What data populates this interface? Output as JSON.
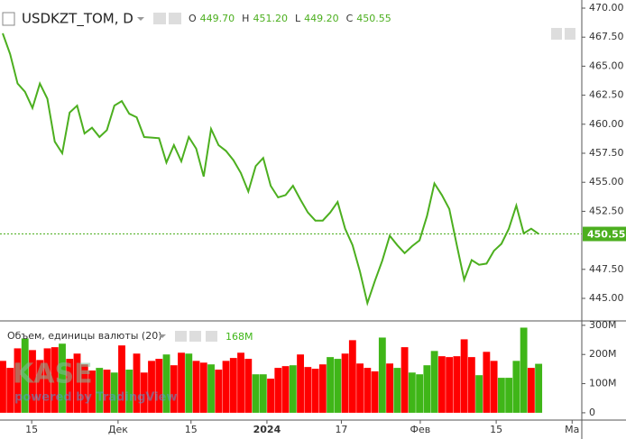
{
  "chart_data": [
    {
      "type": "line",
      "title": "USDKZT_TOM, D",
      "ohlc": [
        [
          "O",
          "449.70"
        ],
        [
          "H",
          "451.20"
        ],
        [
          "L",
          "449.20"
        ],
        [
          "C",
          "450.55"
        ]
      ],
      "color": "#4caf1f",
      "categories": [
        null,
        null,
        null,
        null,
        null,
        null,
        null,
        null,
        null,
        null,
        null,
        null,
        null,
        null,
        null,
        null,
        null,
        null,
        null,
        null,
        null,
        null,
        null,
        null,
        null,
        null,
        null,
        null,
        null,
        null,
        null,
        null,
        null,
        null,
        null,
        null,
        null,
        null,
        null,
        null,
        null,
        null,
        null,
        null,
        null,
        null,
        null,
        null,
        null,
        null,
        null,
        null,
        null,
        null,
        null,
        null,
        null,
        null,
        null,
        null,
        null,
        null,
        null,
        null,
        null,
        null,
        null,
        null,
        null,
        null,
        null,
        null,
        null
      ],
      "values": [
        467.83,
        466.05,
        463.5,
        462.8,
        461.4,
        463.5,
        462.2,
        458.5,
        457.5,
        461.0,
        461.6,
        459.2,
        459.7,
        458.9,
        459.5,
        461.6,
        462.0,
        460.9,
        460.6,
        458.9,
        458.85,
        458.8,
        456.7,
        458.2,
        456.8,
        458.9,
        457.9,
        455.5,
        459.6,
        458.2,
        457.7,
        456.9,
        455.8,
        454.2,
        456.4,
        457.1,
        454.7,
        453.7,
        453.9,
        454.7,
        453.5,
        452.4,
        451.7,
        451.7,
        452.4,
        453.3,
        451.0,
        449.6,
        447.3,
        444.6,
        446.5,
        448.25,
        450.4,
        449.6,
        448.9,
        449.5,
        450.0,
        452.1,
        454.9,
        453.9,
        452.7,
        449.6,
        446.6,
        448.3,
        447.9,
        448.0,
        449.1,
        449.7,
        451.0,
        453.0,
        450.6,
        451.0,
        450.55
      ],
      "last_value": 450.55,
      "last_label": "450.55",
      "xlim": [
        -0.36,
        77.8
      ],
      "ylim": [
        443.06,
        470.7
      ],
      "yticks": [
        {
          "value": 445,
          "label": "445.00"
        },
        {
          "value": 447.5,
          "label": "447.50"
        },
        {
          "value": 452.5,
          "label": "452.50"
        },
        {
          "value": 455,
          "label": "455.00"
        },
        {
          "value": 457.5,
          "label": "457.50"
        },
        {
          "value": 460,
          "label": "460.00"
        },
        {
          "value": 462.5,
          "label": "462.50"
        },
        {
          "value": 465,
          "label": "465.00"
        },
        {
          "value": 467.5,
          "label": "467.50"
        },
        {
          "value": 470,
          "label": "470.00"
        }
      ]
    },
    {
      "type": "bar",
      "title": "Объем, единицы валюты (20)",
      "last_label": "168M",
      "values": [
        178,
        154,
        221,
        255,
        215,
        181,
        221,
        225,
        237,
        185,
        203,
        166,
        145,
        154,
        148,
        138,
        231,
        148,
        203,
        138,
        178,
        185,
        200,
        163,
        206,
        203,
        178,
        172,
        166,
        148,
        178,
        188,
        206,
        185,
        132,
        132,
        117,
        154,
        160,
        163,
        200,
        157,
        151,
        166,
        191,
        185,
        203,
        249,
        169,
        154,
        142,
        258,
        169,
        154,
        225,
        138,
        132,
        163,
        212,
        194,
        191,
        194,
        252,
        191,
        129,
        209,
        178,
        120,
        120,
        178,
        292,
        154,
        168
      ],
      "colors": [
        "#ff0000",
        "#ff0000",
        "#ff0000",
        "#3fb618",
        "#ff0000",
        "#ff0000",
        "#ff0000",
        "#ff0000",
        "#3fb618",
        "#ff0000",
        "#ff0000",
        "#ff0000",
        "#ff0000",
        "#3fb618",
        "#ff0000",
        "#3fb618",
        "#ff0000",
        "#3fb618",
        "#ff0000",
        "#ff0000",
        "#ff0000",
        "#ff0000",
        "#3fb618",
        "#ff0000",
        "#ff0000",
        "#3fb618",
        "#ff0000",
        "#ff0000",
        "#3fb618",
        "#ff0000",
        "#ff0000",
        "#ff0000",
        "#ff0000",
        "#ff0000",
        "#3fb618",
        "#3fb618",
        "#ff0000",
        "#ff0000",
        "#ff0000",
        "#3fb618",
        "#ff0000",
        "#ff0000",
        "#ff0000",
        "#ff0000",
        "#3fb618",
        "#3fb618",
        "#ff0000",
        "#ff0000",
        "#ff0000",
        "#ff0000",
        "#ff0000",
        "#3fb618",
        "#ff0000",
        "#3fb618",
        "#ff0000",
        "#3fb618",
        "#3fb618",
        "#3fb618",
        "#3fb618",
        "#ff0000",
        "#ff0000",
        "#ff0000",
        "#ff0000",
        "#ff0000",
        "#3fb618",
        "#ff0000",
        "#ff0000",
        "#3fb618",
        "#3fb618",
        "#3fb618",
        "#3fb618",
        "#ff0000",
        "#3fb618"
      ],
      "ylim": [
        -25,
        312
      ],
      "yticks": [
        0,
        {
          "value": 100,
          "label": "100M"
        },
        {
          "value": 200,
          "label": "200M"
        },
        {
          "value": 300,
          "label": "300M"
        }
      ],
      "xlim": [
        -0.36,
        77.8
      ],
      "xticks": [
        {
          "value": 3.9,
          "label": "15"
        },
        {
          "value": 15.5,
          "label": "Дек"
        },
        {
          "value": 25.3,
          "label": "15"
        },
        {
          "value": 35.5,
          "label": "2024"
        },
        {
          "value": 45.5,
          "label": "17"
        },
        {
          "value": 56.1,
          "label": "Фев"
        },
        {
          "value": 66.3,
          "label": "15"
        },
        {
          "value": 76.5,
          "label": "Ма"
        }
      ]
    }
  ],
  "watermark": {
    "logo": "KASE",
    "powered": "powered by TradingView"
  }
}
